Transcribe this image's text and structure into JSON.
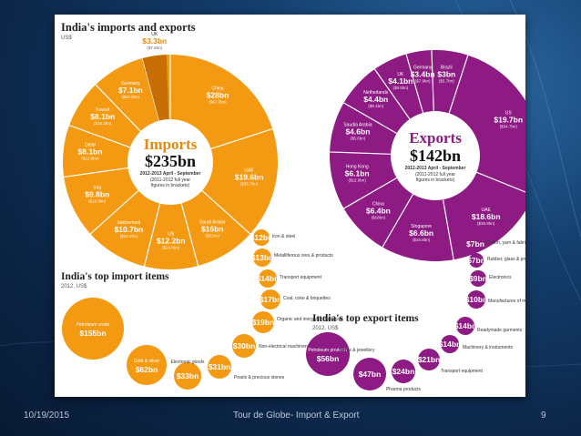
{
  "footer": {
    "date": "10/19/2015",
    "title": "Tour de Globe- Import & Export",
    "page": "9"
  },
  "imports": {
    "heading": "India's imports and exports",
    "unit": "US$",
    "center_title": "Imports",
    "center_value": "$235bn",
    "center_period": "2012-2013 April - September",
    "center_note_1": "(2011-2012 full year",
    "center_note_2": "figures in brackets)",
    "segments": [
      {
        "country": "China",
        "value": "$28bn",
        "prev": "($57.5bn)"
      },
      {
        "country": "UAE",
        "value": "$19.6bn",
        "prev": "($35.7bn)"
      },
      {
        "country": "Saudi Arabia",
        "value": "$16bn",
        "prev": "($31bn)"
      },
      {
        "country": "US",
        "value": "$12.2bn",
        "prev": "($24.6bn)"
      },
      {
        "country": "Switzerland",
        "value": "$10.7bn",
        "prev": "($32.4bn)"
      },
      {
        "country": "Iraq",
        "value": "$9.8bn",
        "prev": "($19.9bn)"
      },
      {
        "country": "Qatar",
        "value": "$8.1bn",
        "prev": "($12.9bn)"
      },
      {
        "country": "Kuwait",
        "value": "$8.1bn",
        "prev": "($16.3bn)"
      },
      {
        "country": "Germany",
        "value": "$7.1bn",
        "prev": "($16.2bn)"
      },
      {
        "country": "UK",
        "value": "$3.3bn",
        "prev": "($7.6bn)"
      }
    ]
  },
  "exports": {
    "center_title": "Exports",
    "center_value": "$142bn",
    "center_period": "2012-2013 April - September",
    "center_note_1": "(2011-2012 full year",
    "center_note_2": "figures in brackets)",
    "segments": [
      {
        "country": "US",
        "value": "$19.7bn",
        "prev": "($34.7bn)"
      },
      {
        "country": "UAE",
        "value": "$18.6bn",
        "prev": "($35.9bn)"
      },
      {
        "country": "Singapore",
        "value": "$6.6bn",
        "prev": "($16.8bn)"
      },
      {
        "country": "China",
        "value": "$6.4bn",
        "prev": "($18bn)"
      },
      {
        "country": "Hong Kong",
        "value": "$6.1bn",
        "prev": "($12.9bn)"
      },
      {
        "country": "Saudia Arabia",
        "value": "$4.6bn",
        "prev": "($5.6bn)"
      },
      {
        "country": "Netherlands",
        "value": "$4.4bn",
        "prev": "($9.1bn)"
      },
      {
        "country": "UK",
        "value": "$4.1bn",
        "prev": "($8.5bn)"
      },
      {
        "country": "Germany",
        "value": "$3.4bn",
        "prev": "($7.9bn)"
      },
      {
        "country": "Brazil",
        "value": "$3bn",
        "prev": "($5.7bn)"
      }
    ]
  },
  "top_imports": {
    "heading": "India's top import items",
    "period": "2012, US$",
    "items": [
      {
        "name": "Petroleum crude",
        "value": "$155bn"
      },
      {
        "name": "Gold & silver",
        "value": "$62bn"
      },
      {
        "name": "Electronic goods",
        "value": "$33bn"
      },
      {
        "name": "Pearls & precious stones",
        "value": "$31bn"
      },
      {
        "name": "Non-electrical machinery",
        "value": "$30bn"
      },
      {
        "name": "Organic and inorganic chemicals",
        "value": "$19bn"
      },
      {
        "name": "Coal, coke & briquettes",
        "value": "$17bn"
      },
      {
        "name": "Transport equipment",
        "value": "$14bn"
      },
      {
        "name": "Metalliferous ores & products",
        "value": "$13bn"
      },
      {
        "name": "Iron & steel",
        "value": "$12bn"
      }
    ]
  },
  "top_exports": {
    "heading": "India's top export items",
    "period": "2012, US$",
    "items": [
      {
        "name": "Petroleum products",
        "value": "$56bn"
      },
      {
        "name": "Gems & jewellery",
        "value": "$47bn"
      },
      {
        "name": "Pharma products",
        "value": "$24bn"
      },
      {
        "name": "Transport equipment",
        "value": "$21bn"
      },
      {
        "name": "Machinery & instruments",
        "value": "$14bn"
      },
      {
        "name": "Readymade garments",
        "value": "$14bn"
      },
      {
        "name": "Manufactures of metals",
        "value": "$10bn"
      },
      {
        "name": "Electronics",
        "value": "$9bn"
      },
      {
        "name": "Rubber, glass & products",
        "value": "$7bn"
      },
      {
        "name": "Cotton, yarn & fabrics",
        "value": "$7bn"
      }
    ]
  },
  "colors": {
    "orange": "#f39a12",
    "orange_dark": "#c76f05",
    "purple": "#8e1a83",
    "purple_dark": "#6d0f64"
  }
}
